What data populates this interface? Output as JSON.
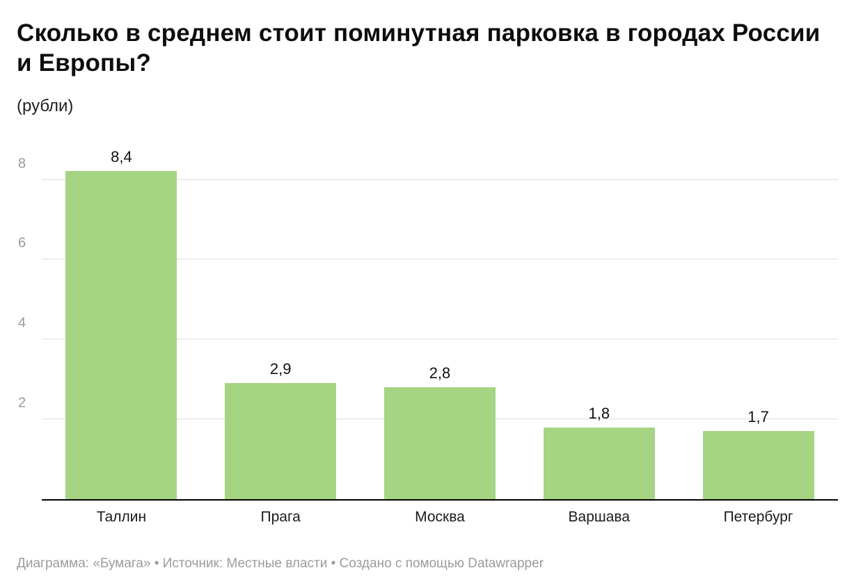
{
  "header": {
    "title": "Сколько в среднем стоит поминутная парковка в городах России и Европы?",
    "subtitle": "(рубли)"
  },
  "footer": {
    "text": "Диаграмма: «Бумага» • Источник: Местные власти • Создано с помощью Datawrapper"
  },
  "colors": {
    "bar": "#a5d483",
    "gridline": "#dedede",
    "baseline": "#000000",
    "tick_label": "#9a9a9a"
  },
  "chart_data": {
    "type": "bar",
    "title": "Сколько в среднем стоит поминутная парковка в городах России и Европы?",
    "subtitle": "(рубли)",
    "categories": [
      "Таллин",
      "Прага",
      "Москва",
      "Варшава",
      "Петербург"
    ],
    "values": [
      8.4,
      2.9,
      2.8,
      1.8,
      1.7
    ],
    "value_labels": [
      "8,4",
      "2,9",
      "2,8",
      "1,8",
      "1,7"
    ],
    "xlabel": "",
    "ylabel": "рубли",
    "ylim": [
      0,
      8.8
    ],
    "yticks": [
      2,
      4,
      6,
      8
    ],
    "grid": true,
    "legend": false,
    "bar_color": "#a5d483"
  }
}
